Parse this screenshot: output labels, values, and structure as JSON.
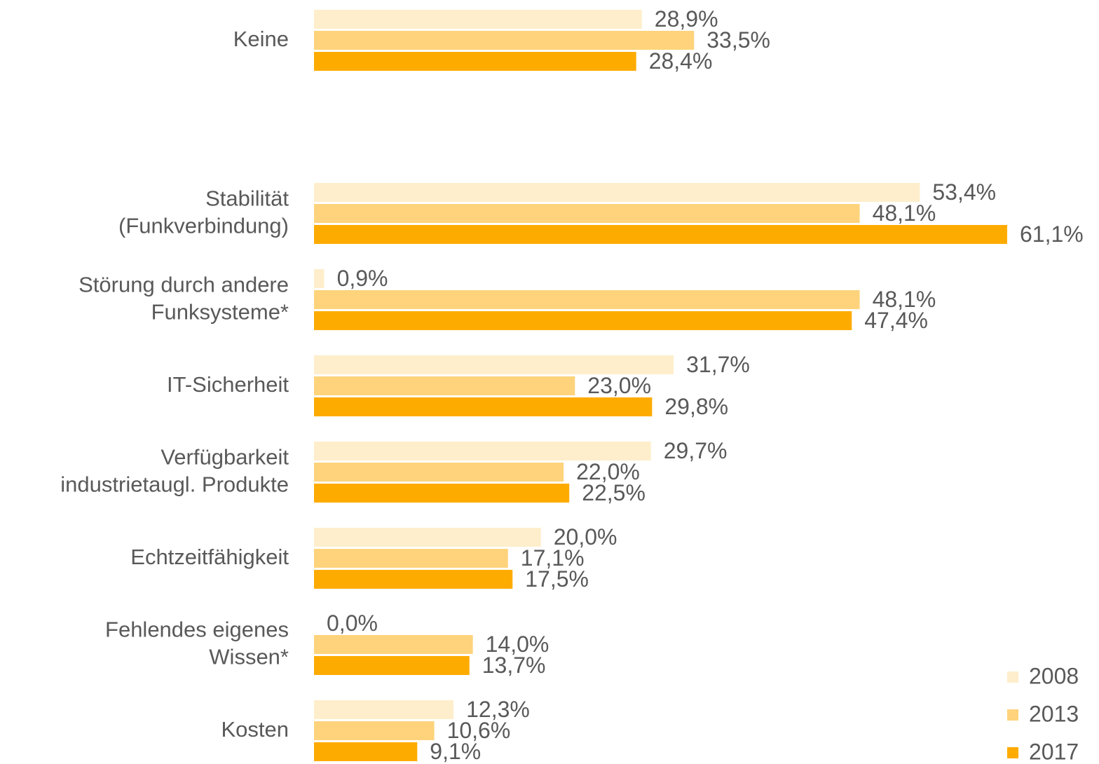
{
  "chart_data": {
    "type": "bar",
    "orientation": "horizontal",
    "categories": [
      [
        "Keine"
      ],
      [
        "Stabilität",
        "(Funkverbindung)"
      ],
      [
        "Störung durch andere",
        "Funksysteme*"
      ],
      [
        "IT-Sicherheit"
      ],
      [
        "Verfügbarkeit",
        "industrietaugl. Produkte"
      ],
      [
        "Echtzeitfähigkeit"
      ],
      [
        "Fehlendes eigenes",
        "Wissen*"
      ],
      [
        "Kosten"
      ]
    ],
    "series": [
      {
        "name": "2008",
        "color": "#feeecb",
        "values": [
          28.9,
          53.4,
          0.9,
          31.7,
          29.7,
          20.0,
          0.0,
          12.3
        ],
        "value_labels": [
          "28,9%",
          "53,4%",
          "0,9%",
          "31,7%",
          "29,7%",
          "20,0%",
          "0,0%",
          "12,3%"
        ]
      },
      {
        "name": "2013",
        "color": "#fed37b",
        "values": [
          33.5,
          48.1,
          48.1,
          23.0,
          22.0,
          17.1,
          14.0,
          10.6
        ],
        "value_labels": [
          "33,5%",
          "48,1%",
          "48,1%",
          "23,0%",
          "22,0%",
          "17,1%",
          "14,0%",
          "10,6%"
        ]
      },
      {
        "name": "2017",
        "color": "#feab00",
        "values": [
          28.4,
          61.1,
          47.4,
          29.8,
          22.5,
          17.5,
          13.7,
          9.1
        ],
        "value_labels": [
          "28,4%",
          "61,1%",
          "47,4%",
          "29,8%",
          "22,5%",
          "17,5%",
          "13,7%",
          "9,1%"
        ]
      }
    ],
    "legend": "bottom-right"
  }
}
